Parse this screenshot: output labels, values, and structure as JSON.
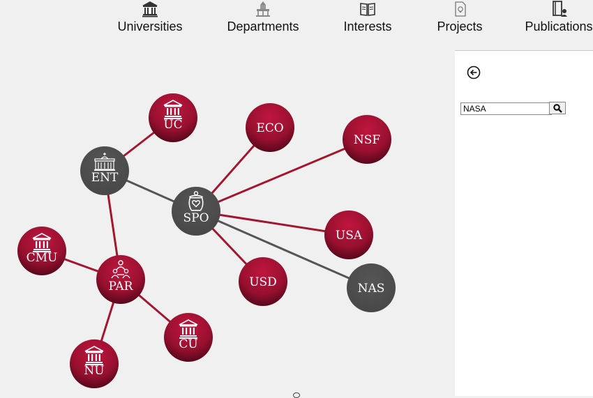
{
  "nav": {
    "items": [
      {
        "key": "universities",
        "label": "Universities",
        "icon": "university-icon"
      },
      {
        "key": "departments",
        "label": "Departments",
        "icon": "department-icon"
      },
      {
        "key": "interests",
        "label": "Interests",
        "icon": "book-icon"
      },
      {
        "key": "projects",
        "label": "Projects",
        "icon": "project-document-icon"
      },
      {
        "key": "publications",
        "label": "Publications",
        "icon": "publication-icon"
      }
    ]
  },
  "search": {
    "value": "NASA"
  },
  "colors": {
    "accent_node": "#9e1030",
    "neutral_node": "#4d4d4d",
    "accent_edge": "#a3162f",
    "neutral_edge": "#555555"
  },
  "graph": {
    "nodes": [
      {
        "id": "UC",
        "label": "UC",
        "type": "university",
        "icon": "university-icon"
      },
      {
        "id": "ENT",
        "label": "ENT",
        "type": "entity",
        "icon": "building-icon"
      },
      {
        "id": "ECO",
        "label": "ECO",
        "type": "topic"
      },
      {
        "id": "NSF",
        "label": "NSF",
        "type": "topic"
      },
      {
        "id": "SPO",
        "label": "SPO",
        "type": "entity",
        "icon": "sponsor-icon"
      },
      {
        "id": "USA",
        "label": "USA",
        "type": "topic"
      },
      {
        "id": "CMU",
        "label": "CMU",
        "type": "university",
        "icon": "university-icon"
      },
      {
        "id": "PAR",
        "label": "PAR",
        "type": "group",
        "icon": "people-icon"
      },
      {
        "id": "USD",
        "label": "USD",
        "type": "topic"
      },
      {
        "id": "NAS",
        "label": "NAS",
        "type": "entity-selected"
      },
      {
        "id": "CU",
        "label": "CU",
        "type": "university",
        "icon": "university-icon"
      },
      {
        "id": "NU",
        "label": "NU",
        "type": "university",
        "icon": "university-icon"
      }
    ],
    "edges": [
      {
        "from": "UC",
        "to": "ENT"
      },
      {
        "from": "ENT",
        "to": "SPO"
      },
      {
        "from": "ENT",
        "to": "PAR"
      },
      {
        "from": "SPO",
        "to": "ECO"
      },
      {
        "from": "SPO",
        "to": "NSF"
      },
      {
        "from": "SPO",
        "to": "USA"
      },
      {
        "from": "SPO",
        "to": "USD"
      },
      {
        "from": "SPO",
        "to": "NAS"
      },
      {
        "from": "PAR",
        "to": "CMU"
      },
      {
        "from": "PAR",
        "to": "CU"
      },
      {
        "from": "PAR",
        "to": "NU"
      }
    ]
  }
}
